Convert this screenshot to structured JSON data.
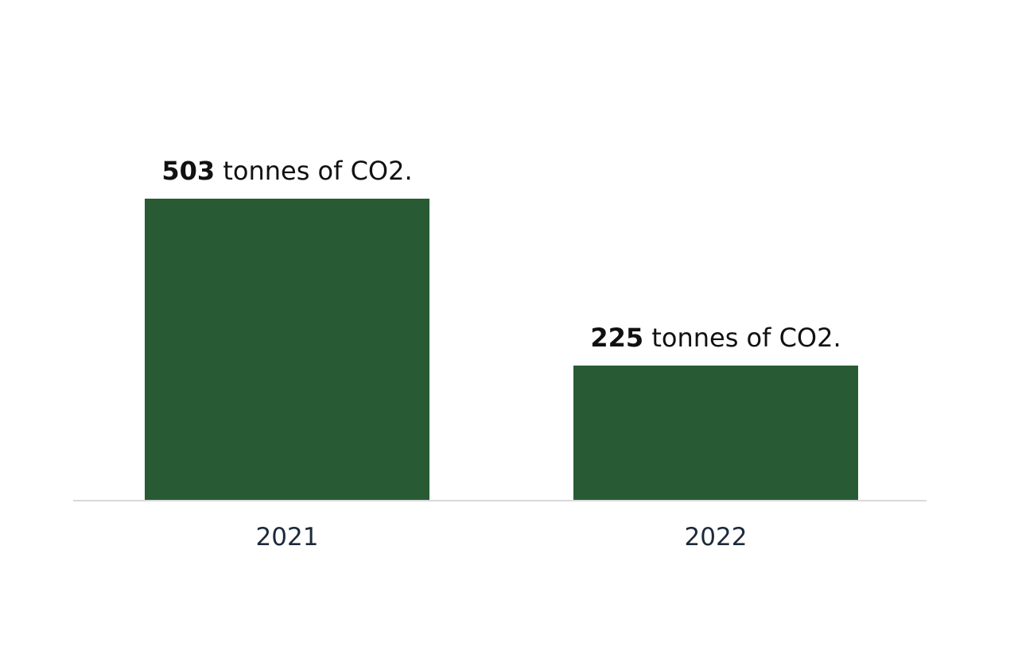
{
  "chart_data": {
    "type": "bar",
    "categories": [
      "2021",
      "2022"
    ],
    "values": [
      503,
      225
    ],
    "data_labels": [
      {
        "number": "503",
        "suffix": " tonnes of CO2."
      },
      {
        "number": "225",
        "suffix": " tonnes of CO2."
      }
    ],
    "title": "",
    "xlabel": "",
    "ylabel": "",
    "ylim": [
      0,
      503
    ],
    "grid": false,
    "legend": "none",
    "colors": {
      "bar": "#285b33",
      "baseline": "#d9d9dc",
      "tick_text": "#1b2a3a",
      "label_text": "#111111"
    }
  }
}
